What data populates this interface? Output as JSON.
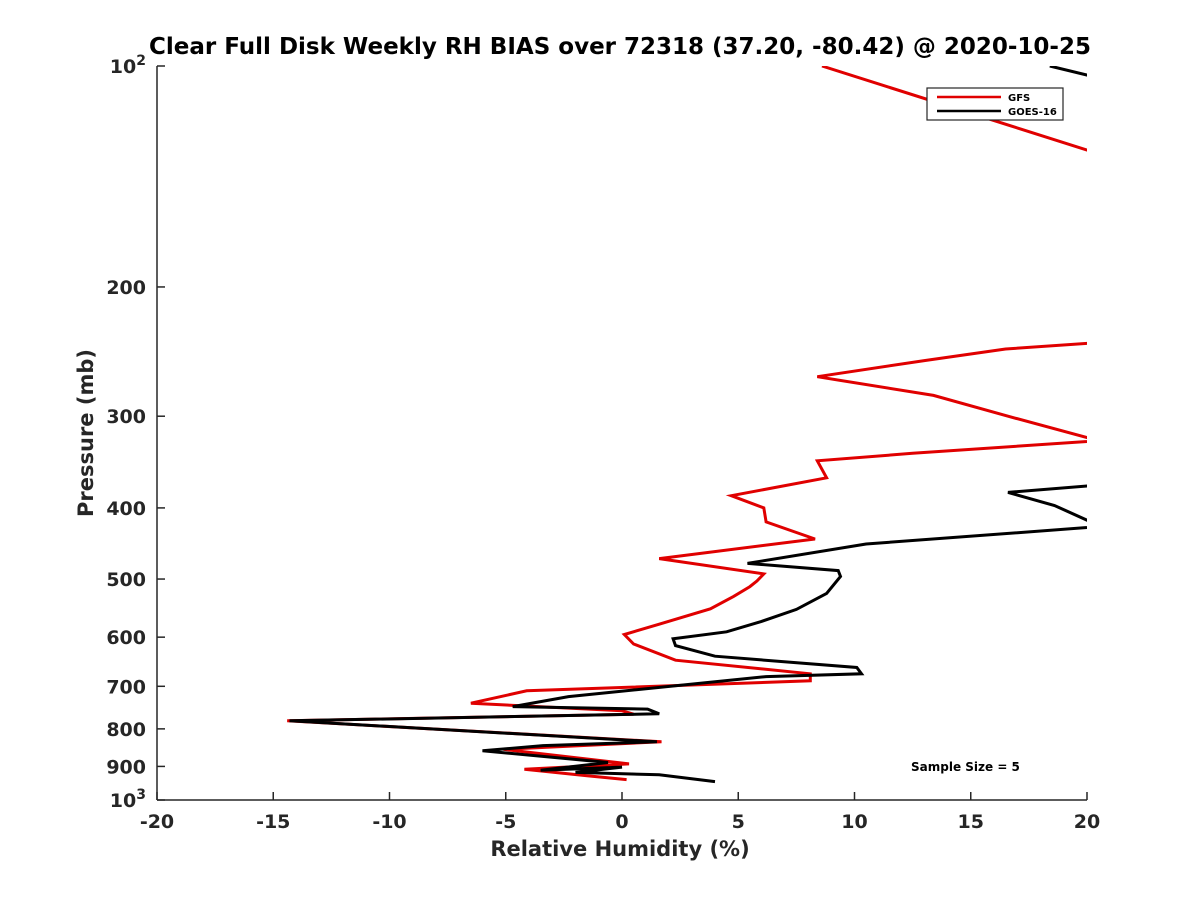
{
  "chart_data": {
    "type": "line",
    "title": "Clear Full Disk Weekly RH BIAS over 72318 (37.20, -80.42) @ 2020-10-25",
    "xlabel": "Relative Humidity (%)",
    "ylabel": "Pressure (mb)",
    "xlim": [
      -20,
      20
    ],
    "ylim": [
      100,
      1000
    ],
    "yscale": "log",
    "yreversed": true,
    "grid": false,
    "legend_position": "top-right",
    "x_ticks": [
      -20,
      -15,
      -10,
      -5,
      0,
      5,
      10,
      15,
      20
    ],
    "x_tick_labels": [
      "-20",
      "-15",
      "-10",
      "-5",
      "0",
      "5",
      "10",
      "15",
      "20"
    ],
    "y_ticks": [
      100,
      200,
      300,
      400,
      500,
      600,
      700,
      800,
      900,
      1000
    ],
    "y_tick_labels": [
      "10^2",
      "200",
      "300",
      "400",
      "500",
      "600",
      "700",
      "800",
      "900",
      "10^3"
    ],
    "annotation": "Sample Size = 5",
    "series": [
      {
        "name": "GFS",
        "color": "#e00000",
        "points": [
          [
            8.6,
            100
          ],
          [
            20.6,
            132
          ],
          [
            20.6,
            238
          ],
          [
            16.5,
            243
          ],
          [
            13.0,
            252
          ],
          [
            8.4,
            265
          ],
          [
            13.4,
            281
          ],
          [
            16.6,
            300
          ],
          [
            20.5,
            324
          ],
          [
            12.5,
            337
          ],
          [
            8.4,
            345
          ],
          [
            8.8,
            364
          ],
          [
            4.7,
            385
          ],
          [
            6.1,
            400
          ],
          [
            6.2,
            418
          ],
          [
            8.3,
            441
          ],
          [
            1.6,
            469
          ],
          [
            6.1,
            492
          ],
          [
            5.8,
            503
          ],
          [
            5.5,
            512
          ],
          [
            4.8,
            528
          ],
          [
            3.8,
            549
          ],
          [
            1.6,
            576
          ],
          [
            0.1,
            595
          ],
          [
            0.5,
            613
          ],
          [
            2.3,
            645
          ],
          [
            8.1,
            673
          ],
          [
            8.1,
            688
          ],
          [
            -4.1,
            710
          ],
          [
            -6.5,
            738
          ],
          [
            0.0,
            756
          ],
          [
            0.5,
            764
          ],
          [
            -14.4,
            780
          ],
          [
            1.7,
            833
          ],
          [
            -5.1,
            853
          ],
          [
            0.3,
            893
          ],
          [
            -4.2,
            908
          ],
          [
            -1.5,
            927
          ],
          [
            0.2,
            938
          ]
        ]
      },
      {
        "name": "GOES-16",
        "color": "#000000",
        "points": [
          [
            18.4,
            100
          ],
          [
            20.6,
            104
          ],
          [
            20.6,
            372
          ],
          [
            16.6,
            381
          ],
          [
            18.6,
            397
          ],
          [
            20.6,
            424
          ],
          [
            10.5,
            448
          ],
          [
            5.4,
            476
          ],
          [
            9.3,
            487
          ],
          [
            9.4,
            496
          ],
          [
            8.8,
            523
          ],
          [
            7.5,
            550
          ],
          [
            6.0,
            571
          ],
          [
            4.5,
            590
          ],
          [
            2.2,
            603
          ],
          [
            2.3,
            616
          ],
          [
            4.0,
            637
          ],
          [
            10.1,
            660
          ],
          [
            10.3,
            673
          ],
          [
            6.2,
            679
          ],
          [
            -2.3,
            723
          ],
          [
            -4.7,
            746
          ],
          [
            1.1,
            752
          ],
          [
            1.6,
            763
          ],
          [
            -14.3,
            780
          ],
          [
            1.5,
            833
          ],
          [
            -3.4,
            843
          ],
          [
            -6.0,
            857
          ],
          [
            -0.6,
            889
          ],
          [
            -3.5,
            911
          ],
          [
            0.0,
            902
          ],
          [
            -2.0,
            917
          ],
          [
            1.6,
            924
          ],
          [
            4.0,
            944
          ]
        ]
      }
    ]
  }
}
